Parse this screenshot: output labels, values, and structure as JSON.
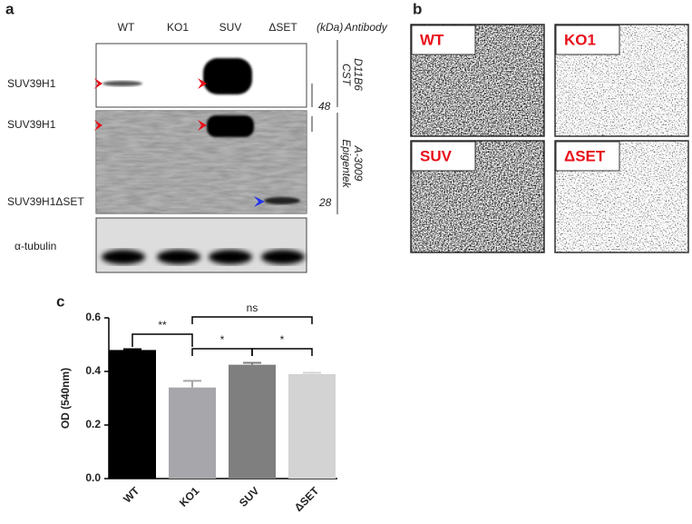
{
  "panel_labels": [
    "a",
    "b",
    "c"
  ],
  "blot": {
    "lanes": [
      "WT",
      "KO1",
      "SUV",
      "ΔSET"
    ],
    "kda_header": "(kDa)",
    "antibody_header": "Antibody",
    "row_labels": [
      "SUV39H1",
      "SUV39H1",
      "SUV39H1ΔSET",
      "α-tubulin"
    ],
    "markers": [
      "48",
      "28"
    ],
    "antibody_1": [
      "CST",
      "D11B6"
    ],
    "antibody_2": [
      "Epigentek",
      "A-3009"
    ]
  },
  "images": {
    "labels": [
      "WT",
      "KO1",
      "SUV",
      "ΔSET"
    ]
  },
  "chart_data": {
    "type": "bar",
    "ylabel": "OD (540nm)",
    "categories": [
      "WT",
      "KO1",
      "SUV",
      "ΔSET"
    ],
    "values": [
      0.48,
      0.34,
      0.425,
      0.39
    ],
    "errors": [
      0.003,
      0.025,
      0.007,
      0.005
    ],
    "colors": [
      "#000000",
      "#a6a6ab",
      "#7f7f7f",
      "#d3d3d3"
    ],
    "ylim": [
      0,
      0.6
    ],
    "yticks": [
      {
        "value": 0,
        "label": "0.0"
      },
      0.2,
      0.4,
      0.6
    ],
    "annotations": [
      "**",
      "*",
      "*",
      "ns"
    ]
  }
}
